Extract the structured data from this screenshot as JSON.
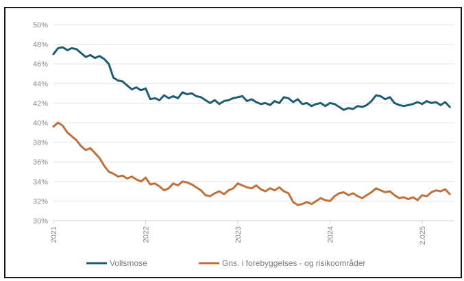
{
  "chart_data": {
    "type": "line",
    "title": "",
    "xlabel": "",
    "ylabel": "",
    "ylim": [
      30,
      50
    ],
    "xlim": [
      2021.0,
      2025.35
    ],
    "y_ticks": [
      "30%",
      "32%",
      "34%",
      "36%",
      "38%",
      "40%",
      "42%",
      "44%",
      "46%",
      "48%",
      "50%"
    ],
    "x_ticks": [
      {
        "value": 2021.0,
        "label": "2021"
      },
      {
        "value": 2022.0,
        "label": "2022"
      },
      {
        "value": 2023.0,
        "label": "2023"
      },
      {
        "value": 2024.0,
        "label": "2024"
      },
      {
        "value": 2025.0,
        "label": "2.025"
      }
    ],
    "grid": "horizontal",
    "legend_position": "bottom",
    "series": [
      {
        "name": "Vollsmose",
        "color": "#1f5c73",
        "x": [
          2021.0,
          2021.05,
          2021.1,
          2021.15,
          2021.2,
          2021.25,
          2021.3,
          2021.35,
          2021.4,
          2021.45,
          2021.5,
          2021.55,
          2021.6,
          2021.65,
          2021.7,
          2021.75,
          2021.8,
          2021.85,
          2021.9,
          2021.95,
          2022.0,
          2022.05,
          2022.1,
          2022.15,
          2022.2,
          2022.25,
          2022.3,
          2022.35,
          2022.4,
          2022.45,
          2022.5,
          2022.55,
          2022.6,
          2022.65,
          2022.7,
          2022.75,
          2022.8,
          2022.85,
          2022.9,
          2022.95,
          2023.0,
          2023.05,
          2023.1,
          2023.15,
          2023.2,
          2023.25,
          2023.3,
          2023.35,
          2023.4,
          2023.45,
          2023.5,
          2023.55,
          2023.6,
          2023.65,
          2023.7,
          2023.75,
          2023.8,
          2023.85,
          2023.9,
          2023.95,
          2024.0,
          2024.05,
          2024.1,
          2024.15,
          2024.2,
          2024.25,
          2024.3,
          2024.35,
          2024.4,
          2024.45,
          2024.5,
          2024.55,
          2024.6,
          2024.65,
          2024.7,
          2024.75,
          2024.8,
          2024.85,
          2024.9,
          2024.95,
          2025.0,
          2025.05,
          2025.1,
          2025.15,
          2025.2,
          2025.25,
          2025.3
        ],
        "values": [
          47.0,
          47.6,
          47.7,
          47.4,
          47.6,
          47.5,
          47.1,
          46.7,
          46.9,
          46.6,
          46.8,
          46.5,
          46.0,
          44.6,
          44.3,
          44.2,
          43.8,
          43.4,
          43.6,
          43.3,
          43.5,
          42.4,
          42.5,
          42.3,
          42.8,
          42.5,
          42.7,
          42.5,
          43.1,
          42.9,
          43.0,
          42.7,
          42.6,
          42.3,
          42.0,
          42.3,
          41.9,
          42.2,
          42.3,
          42.5,
          42.6,
          42.7,
          42.2,
          42.4,
          42.1,
          41.9,
          42.0,
          41.8,
          42.2,
          42.0,
          42.6,
          42.5,
          42.1,
          42.4,
          41.9,
          42.0,
          41.7,
          41.9,
          42.0,
          41.7,
          42.0,
          41.9,
          41.6,
          41.3,
          41.5,
          41.4,
          41.7,
          41.6,
          41.8,
          42.2,
          42.8,
          42.7,
          42.4,
          42.6,
          42.0,
          41.8,
          41.7,
          41.8,
          41.9,
          42.1,
          41.9,
          42.2,
          42.0,
          42.1,
          41.8,
          42.1,
          41.6
        ]
      },
      {
        "name": "Gns. i forebyggelses - og risikoområder",
        "color": "#c0703a",
        "x": [
          2021.0,
          2021.05,
          2021.1,
          2021.15,
          2021.2,
          2021.25,
          2021.3,
          2021.35,
          2021.4,
          2021.45,
          2021.5,
          2021.55,
          2021.6,
          2021.65,
          2021.7,
          2021.75,
          2021.8,
          2021.85,
          2021.9,
          2021.95,
          2022.0,
          2022.05,
          2022.1,
          2022.15,
          2022.2,
          2022.25,
          2022.3,
          2022.35,
          2022.4,
          2022.45,
          2022.5,
          2022.55,
          2022.6,
          2022.65,
          2022.7,
          2022.75,
          2022.8,
          2022.85,
          2022.9,
          2022.95,
          2023.0,
          2023.05,
          2023.1,
          2023.15,
          2023.2,
          2023.25,
          2023.3,
          2023.35,
          2023.4,
          2023.45,
          2023.5,
          2023.55,
          2023.6,
          2023.65,
          2023.7,
          2023.75,
          2023.8,
          2023.85,
          2023.9,
          2023.95,
          2024.0,
          2024.05,
          2024.1,
          2024.15,
          2024.2,
          2024.25,
          2024.3,
          2024.35,
          2024.4,
          2024.45,
          2024.5,
          2024.55,
          2024.6,
          2024.65,
          2024.7,
          2024.75,
          2024.8,
          2024.85,
          2024.9,
          2024.95,
          2025.0,
          2025.05,
          2025.1,
          2025.15,
          2025.2,
          2025.25,
          2025.3
        ],
        "values": [
          39.6,
          40.0,
          39.7,
          39.0,
          38.6,
          38.2,
          37.6,
          37.2,
          37.4,
          36.9,
          36.4,
          35.6,
          35.0,
          34.8,
          34.5,
          34.6,
          34.3,
          34.5,
          34.2,
          34.0,
          34.4,
          33.7,
          33.8,
          33.5,
          33.1,
          33.3,
          33.8,
          33.6,
          34.0,
          33.9,
          33.7,
          33.4,
          33.1,
          32.6,
          32.5,
          32.8,
          33.0,
          32.7,
          33.1,
          33.3,
          33.8,
          33.6,
          33.4,
          33.3,
          33.6,
          33.2,
          33.0,
          33.3,
          33.1,
          33.4,
          33.0,
          32.8,
          31.9,
          31.6,
          31.7,
          31.9,
          31.7,
          32.0,
          32.3,
          32.1,
          32.0,
          32.5,
          32.8,
          32.9,
          32.6,
          32.8,
          32.5,
          32.3,
          32.6,
          32.9,
          33.3,
          33.1,
          32.9,
          33.0,
          32.6,
          32.3,
          32.4,
          32.2,
          32.4,
          32.1,
          32.6,
          32.5,
          32.9,
          33.1,
          33.0,
          33.2,
          32.7
        ]
      }
    ]
  }
}
